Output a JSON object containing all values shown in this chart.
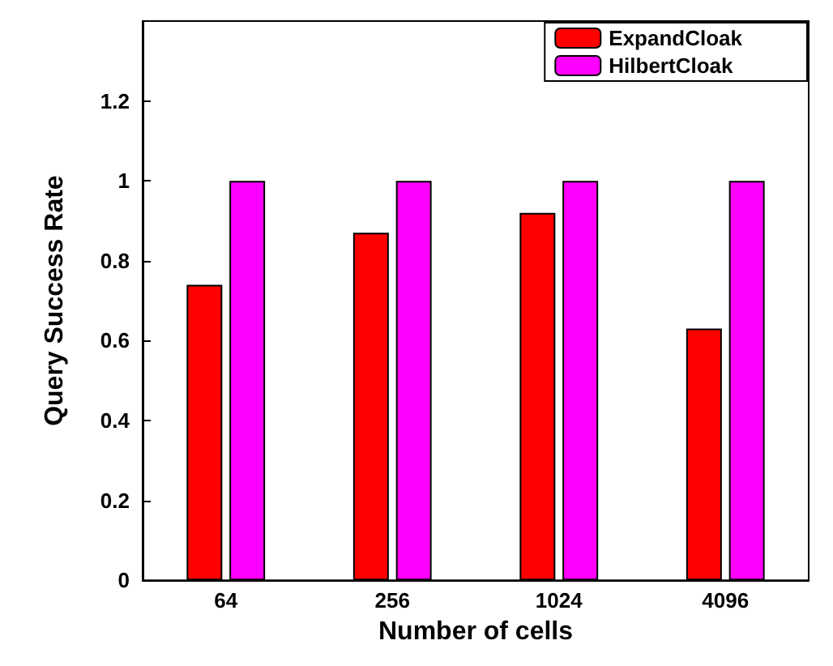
{
  "chart_data": {
    "type": "bar",
    "xlabel": "Number of cells",
    "ylabel": "Query Success Rate",
    "categories": [
      "64",
      "256",
      "1024",
      "4096"
    ],
    "series": [
      {
        "name": "ExpandCloak",
        "color": "#ff0000",
        "values": [
          0.74,
          0.87,
          0.92,
          0.63
        ]
      },
      {
        "name": "HilbertCloak",
        "color": "#ff00ff",
        "values": [
          1,
          1,
          1,
          1
        ]
      }
    ],
    "ylim": [
      0,
      1.4
    ],
    "yticks": [
      0,
      0.2,
      0.4,
      0.6,
      0.8,
      1,
      1.2
    ],
    "grid": false,
    "legend": "top right"
  }
}
